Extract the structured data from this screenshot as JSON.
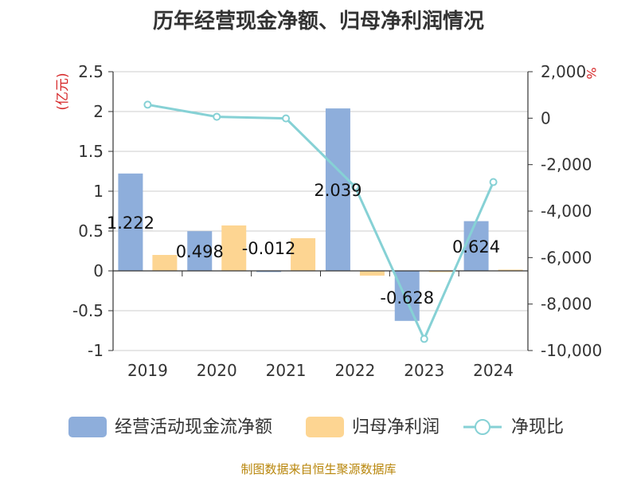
{
  "chart_data": {
    "type": "bar",
    "title": "历年经营现金净额、归母净利润情况",
    "categories": [
      "2019",
      "2020",
      "2021",
      "2022",
      "2023",
      "2024"
    ],
    "series": [
      {
        "name": "经营活动现金流净额",
        "kind": "bar",
        "axis": "left",
        "values": [
          1.222,
          0.498,
          -0.012,
          2.039,
          -0.628,
          0.624
        ],
        "labels": [
          "1.222",
          "0.498",
          "-0.012",
          "2.039",
          "-0.628",
          "0.624"
        ]
      },
      {
        "name": "归母净利润",
        "kind": "bar",
        "axis": "left",
        "values": [
          0.2,
          0.57,
          0.41,
          -0.06,
          0.0,
          0.01
        ]
      },
      {
        "name": "净现比",
        "kind": "line",
        "axis": "right",
        "values": [
          580,
          60,
          -10,
          -2950,
          -9500,
          -2750
        ]
      }
    ],
    "y_left": {
      "unit_label": "(亿元)",
      "ylim": [
        -1,
        2.5
      ],
      "ticks": [
        "2.5",
        "2",
        "1.5",
        "1",
        "0.5",
        "0",
        "-0.5",
        "-1"
      ],
      "tick_values": [
        2.5,
        2,
        1.5,
        1,
        0.5,
        0,
        -0.5,
        -1
      ]
    },
    "y_right": {
      "unit_label": "%",
      "ylim": [
        -10000,
        2000
      ],
      "ticks": [
        "2,000",
        "0",
        "-2,000",
        "-4,000",
        "-6,000",
        "-8,000",
        "-10,000"
      ],
      "tick_values": [
        2000,
        0,
        -2000,
        -4000,
        -6000,
        -8000,
        -10000
      ]
    },
    "grid": true,
    "legend_position": "bottom",
    "colors": {
      "bar1": "#8eaedb",
      "bar2": "#fdd592",
      "line": "#86d1d5",
      "unit_label": "#d62728",
      "axis": "#333333",
      "grid": "#cccccc"
    }
  },
  "source_note": "制图数据来自恒生聚源数据库",
  "source_note_color": "#b8860b"
}
